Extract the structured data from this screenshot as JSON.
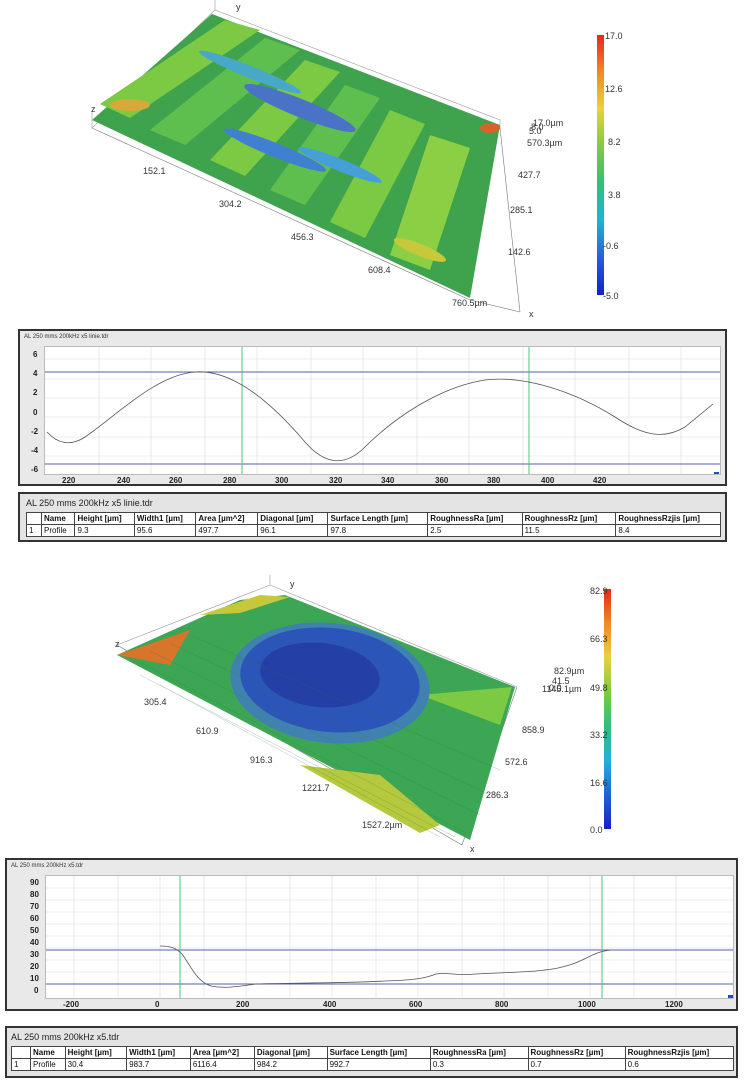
{
  "scan1": {
    "z_label": "z",
    "y_label": "y",
    "x_label": "x",
    "x_ticks": [
      "152.1",
      "304.2",
      "456.3",
      "608.4",
      "760.5µm"
    ],
    "y_ticks": [
      "570.3µm",
      "427.7",
      "285.1",
      "142.6"
    ],
    "z_ticks": [
      "17.0µm",
      "5.0",
      "8.0"
    ],
    "colorbar": [
      "17.0",
      "12.6",
      "8.2",
      "3.8",
      "-0.6",
      "-5.0"
    ]
  },
  "profile1": {
    "file": "AL 250 mms 200kHz x5 linie.tdr",
    "x_ticks": [
      "220",
      "240",
      "260",
      "280",
      "300",
      "320",
      "340",
      "360",
      "380",
      "400",
      "420"
    ],
    "y_ticks": [
      "6",
      "4",
      "2",
      "0",
      "-2",
      "-4",
      "-6"
    ]
  },
  "table1": {
    "file": "AL 250 mms 200kHz x5 linie.tdr",
    "headers": [
      "",
      "Name",
      "Height [µm]",
      "Width1 [µm]",
      "Area [µm^2]",
      "Diagonal [µm]",
      "Surface Length [µm]",
      "RoughnessRa [µm]",
      "RoughnessRz [µm]",
      "RoughnessRzjis [µm]"
    ],
    "row": [
      "1",
      "Profile",
      "9.3",
      "95.6",
      "497.7",
      "96.1",
      "97.8",
      "2.5",
      "11.5",
      "8.4"
    ]
  },
  "scan2": {
    "z_label": "z",
    "y_label": "y",
    "x_label": "x",
    "x_ticks": [
      "305.4",
      "610.9",
      "916.3",
      "1221.7",
      "1527.2µm"
    ],
    "y_ticks": [
      "1145.1µm",
      "858.9",
      "572.6",
      "286.3"
    ],
    "z_ticks": [
      "82.9µm",
      "41.5",
      "0.0"
    ],
    "colorbar": [
      "82.9",
      "66.3",
      "49.8",
      "33.2",
      "16.6",
      "0.0"
    ]
  },
  "profile2": {
    "file": "AL 250 mms 200kHz x5.tdr",
    "x_ticks": [
      "-200",
      "0",
      "200",
      "400",
      "600",
      "800",
      "1000",
      "1200"
    ],
    "y_ticks": [
      "90",
      "80",
      "70",
      "60",
      "50",
      "40",
      "30",
      "20",
      "10",
      "0"
    ]
  },
  "table2": {
    "file": "AL 250 mms 200kHz x5.tdr",
    "headers": [
      "",
      "Name",
      "Height [µm]",
      "Width1 [µm]",
      "Area [µm^2]",
      "Diagonal [µm]",
      "Surface Length [µm]",
      "RoughnessRa [µm]",
      "RoughnessRz [µm]",
      "RoughnessRzjis [µm]"
    ],
    "row": [
      "1",
      "Profile",
      "30.4",
      "983.7",
      "6116.4",
      "984.2",
      "992.7",
      "0.3",
      "0.7",
      "0.6"
    ]
  }
}
